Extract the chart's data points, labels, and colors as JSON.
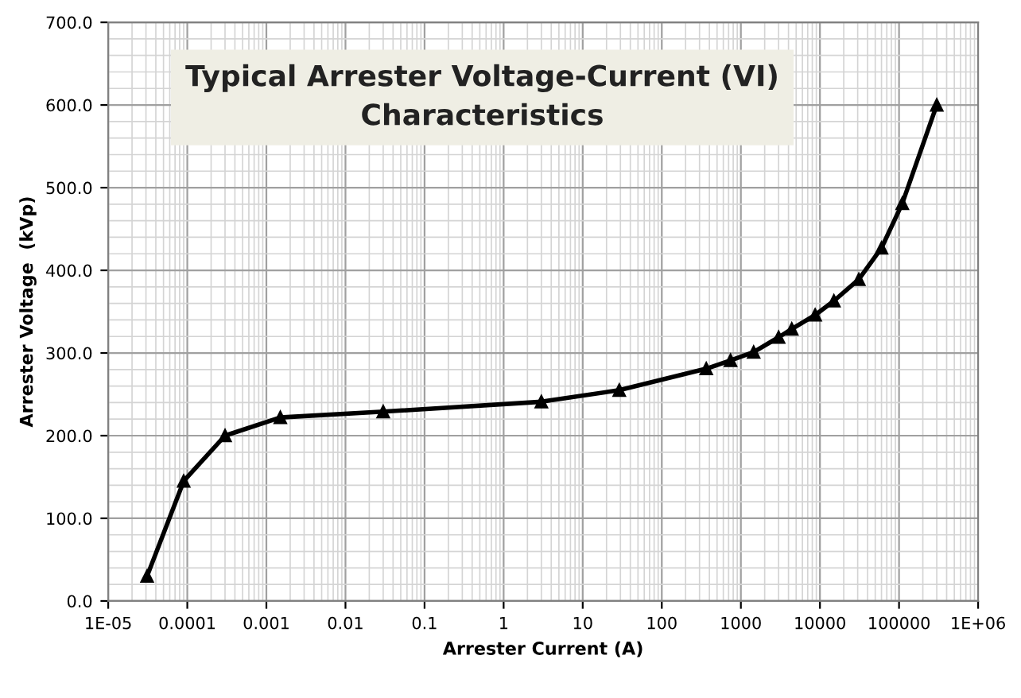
{
  "chart_data": {
    "type": "line",
    "title": "Typical Arrester Voltage-Current (VI)\nCharacteristics",
    "xlabel": "Arrester Current (A)",
    "ylabel": "Arrester Voltage  (kVp)",
    "log": "x",
    "grid": true,
    "marker": "triangle",
    "line_style": "solid",
    "series": [
      {
        "color": "#000000",
        "x": [
          3.1e-05,
          9e-05,
          0.0003,
          0.0015,
          0.03,
          3,
          29,
          365,
          740,
          1450,
          3000,
          4400,
          8700,
          15000,
          31000,
          60000,
          110000,
          300000
        ],
        "values": [
          30,
          145,
          200,
          222,
          229,
          241,
          255,
          281,
          291,
          301,
          319,
          329,
          346,
          363,
          389,
          427,
          481,
          600
        ]
      }
    ],
    "xlim": [
      1e-05,
      1000000
    ],
    "xticks": [
      {
        "value": 1e-05,
        "label": "1E-05"
      },
      0.0001,
      0.001,
      0.01,
      0.1,
      1,
      10,
      100,
      1000,
      10000,
      100000,
      {
        "value": 1000000,
        "label": "1E+06"
      }
    ],
    "ylim": [
      0,
      700
    ],
    "yticks": [
      {
        "value": 0,
        "label": "0.0"
      },
      {
        "value": 100,
        "label": "100.0"
      },
      {
        "value": 200,
        "label": "200.0"
      },
      {
        "value": 300,
        "label": "300.0"
      },
      {
        "value": 400,
        "label": "400.0"
      },
      {
        "value": 500,
        "label": "500.0"
      },
      {
        "value": 600,
        "label": "600.0"
      },
      {
        "value": 700,
        "label": "700.0"
      }
    ]
  }
}
